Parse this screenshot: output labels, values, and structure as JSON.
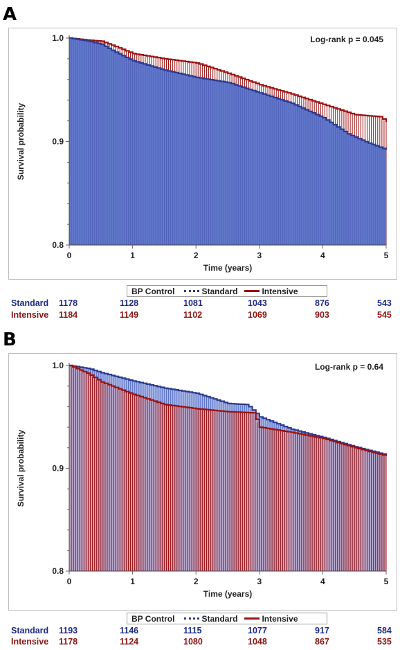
{
  "panels": [
    {
      "letter": "A",
      "logrank": "Log-rank p = 0.045",
      "legend": {
        "title": "BP Control",
        "standard": "Standard",
        "intensive": "Intensive"
      },
      "risk_table": {
        "standard_label": "Standard",
        "intensive_label": "Intensive",
        "standard": [
          "1178",
          "1128",
          "1081",
          "1043",
          "876",
          "543"
        ],
        "intensive": [
          "1184",
          "1149",
          "1102",
          "1069",
          "903",
          "545"
        ]
      }
    },
    {
      "letter": "B",
      "logrank": "Log-rank p = 0.64",
      "legend": {
        "title": "BP Control",
        "standard": "Standard",
        "intensive": "Intensive"
      },
      "risk_table": {
        "standard_label": "Standard",
        "intensive_label": "Intensive",
        "standard": [
          "1193",
          "1146",
          "1115",
          "1077",
          "917",
          "584"
        ],
        "intensive": [
          "1178",
          "1124",
          "1080",
          "1048",
          "867",
          "535"
        ]
      }
    }
  ],
  "colors": {
    "standard": "#5a72c8",
    "standard_line": "#2b3a8f",
    "intensive": "#9b1111",
    "intensive_fill": "#c7a0b8"
  },
  "chart_data": [
    {
      "type": "line",
      "xlabel": "Time (years)",
      "ylabel": "Survival probability",
      "xlim": [
        0,
        5
      ],
      "ylim": [
        0.8,
        1.0
      ],
      "xticks": [
        "0",
        "1",
        "2",
        "3",
        "4",
        "5"
      ],
      "yticks": [
        "0.8",
        "0.9",
        "1.0"
      ],
      "series": [
        {
          "name": "Standard",
          "x": [
            0,
            0.3,
            0.5,
            0.7,
            1.0,
            1.5,
            2.0,
            2.5,
            3.0,
            3.5,
            4.0,
            4.4,
            4.7,
            5.0
          ],
          "y": [
            1.0,
            0.997,
            0.994,
            0.987,
            0.978,
            0.969,
            0.962,
            0.957,
            0.947,
            0.937,
            0.923,
            0.907,
            0.899,
            0.892
          ]
        },
        {
          "name": "Intensive",
          "x": [
            0,
            0.3,
            0.5,
            0.8,
            1.0,
            1.5,
            2.0,
            2.5,
            3.0,
            3.5,
            4.0,
            4.5,
            4.9,
            5.0
          ],
          "y": [
            1.0,
            0.998,
            0.997,
            0.99,
            0.985,
            0.98,
            0.976,
            0.966,
            0.955,
            0.946,
            0.936,
            0.926,
            0.924,
            0.919
          ]
        }
      ]
    },
    {
      "type": "line",
      "xlabel": "Time (years)",
      "ylabel": "Survival probability",
      "xlim": [
        0,
        5
      ],
      "ylim": [
        0.8,
        1.0
      ],
      "xticks": [
        "0",
        "1",
        "2",
        "3",
        "4",
        "5"
      ],
      "yticks": [
        "0.8",
        "0.9",
        "1.0"
      ],
      "series": [
        {
          "name": "Standard",
          "x": [
            0,
            0.3,
            0.5,
            1.0,
            1.5,
            2.0,
            2.5,
            2.8,
            3.0,
            3.5,
            4.0,
            4.5,
            5.0
          ],
          "y": [
            1.0,
            0.997,
            0.993,
            0.985,
            0.978,
            0.973,
            0.963,
            0.962,
            0.95,
            0.938,
            0.93,
            0.921,
            0.913
          ]
        },
        {
          "name": "Intensive",
          "x": [
            0,
            0.3,
            0.5,
            1.0,
            1.5,
            2.0,
            2.5,
            2.9,
            3.0,
            3.5,
            4.0,
            4.5,
            5.0
          ],
          "y": [
            1.0,
            0.992,
            0.984,
            0.972,
            0.962,
            0.958,
            0.955,
            0.954,
            0.94,
            0.935,
            0.929,
            0.92,
            0.912
          ]
        }
      ]
    }
  ]
}
